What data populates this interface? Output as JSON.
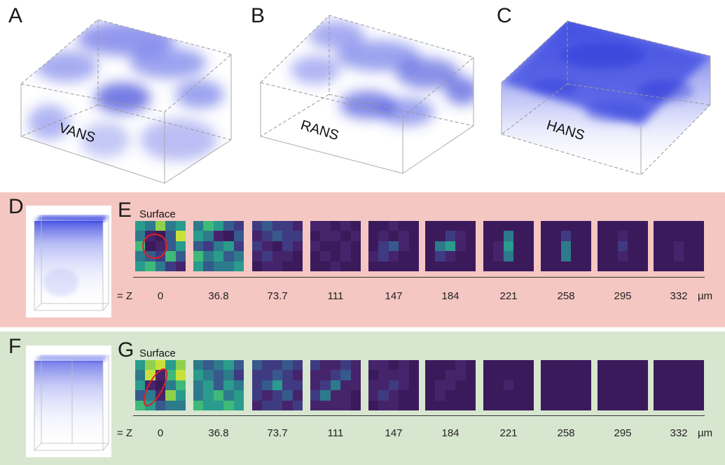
{
  "top_panels": [
    {
      "letter": "A",
      "label": "VANS"
    },
    {
      "letter": "B",
      "label": "RANS"
    },
    {
      "letter": "C",
      "label": "HANS"
    }
  ],
  "row_red": {
    "inset_letter": "D",
    "tiles_letter": "E",
    "surface_label": "Surface"
  },
  "row_green": {
    "inset_letter": "F",
    "tiles_letter": "G",
    "surface_label": "Surface"
  },
  "z_axis": {
    "prefix": "= Z",
    "values": [
      "0",
      "36.8",
      "73.7",
      "111",
      "147",
      "184",
      "221",
      "258",
      "295",
      "332"
    ],
    "unit": "µm"
  },
  "colors": {
    "blue_cloud": "#3a46e0",
    "red_band": "#f5c7c3",
    "green_band": "#d7e6cf",
    "viridis_dark": "#3b1a5c",
    "viridis_teal": "#2a9b8c",
    "viridis_yellow": "#c8e03a",
    "highlight_red": "#e02020"
  }
}
